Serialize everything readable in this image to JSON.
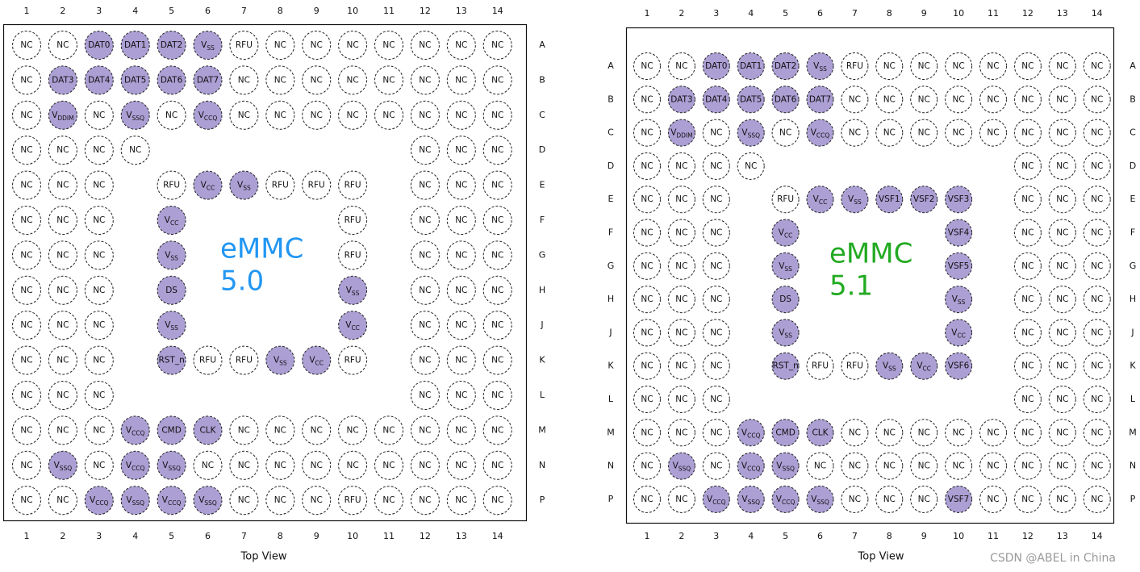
{
  "packages": [
    {
      "label_lines": [
        "eMMC",
        "5.0"
      ],
      "label_color": "#2196f3",
      "caption": "Top View",
      "columns": [
        1,
        2,
        3,
        4,
        5,
        6,
        7,
        8,
        9,
        10,
        11,
        12,
        13,
        14
      ],
      "rows": [
        "A",
        "B",
        "C",
        "D",
        "E",
        "F",
        "G",
        "H",
        "J",
        "K",
        "L",
        "M",
        "N",
        "P"
      ],
      "balls": [
        [
          "NC",
          "NC",
          {
            "t": "DAT0"
          },
          {
            "t": "DAT1"
          },
          {
            "t": "DAT2"
          },
          {
            "t": "V",
            "s": "SS"
          },
          "RFU",
          "NC",
          "NC",
          "NC",
          "NC",
          "NC",
          "NC",
          "NC"
        ],
        [
          "NC",
          {
            "t": "DAT3"
          },
          {
            "t": "DAT4"
          },
          {
            "t": "DAT5"
          },
          {
            "t": "DAT6"
          },
          {
            "t": "DAT7"
          },
          "NC",
          "NC",
          "NC",
          "NC",
          "NC",
          "NC",
          "NC",
          "NC"
        ],
        [
          "NC",
          {
            "t": "V",
            "s": "DDIM"
          },
          "NC",
          {
            "t": "V",
            "s": "SSQ"
          },
          "NC",
          {
            "t": "V",
            "s": "CCQ"
          },
          "NC",
          "NC",
          "NC",
          "NC",
          "NC",
          "NC",
          "NC",
          "NC"
        ],
        [
          "NC",
          "NC",
          "NC",
          "NC",
          null,
          null,
          null,
          null,
          null,
          null,
          null,
          "NC",
          "NC",
          "NC"
        ],
        [
          "NC",
          "NC",
          "NC",
          null,
          "RFU",
          {
            "t": "V",
            "s": "CC"
          },
          {
            "t": "V",
            "s": "SS"
          },
          "RFU",
          "RFU",
          "RFU",
          null,
          "NC",
          "NC",
          "NC"
        ],
        [
          "NC",
          "NC",
          "NC",
          null,
          {
            "t": "V",
            "s": "CC"
          },
          null,
          null,
          null,
          null,
          "RFU",
          null,
          "NC",
          "NC",
          "NC"
        ],
        [
          "NC",
          "NC",
          "NC",
          null,
          {
            "t": "V",
            "s": "SS"
          },
          null,
          null,
          null,
          null,
          "RFU",
          null,
          "NC",
          "NC",
          "NC"
        ],
        [
          "NC",
          "NC",
          "NC",
          null,
          {
            "t": "DS"
          },
          null,
          null,
          null,
          null,
          {
            "t": "V",
            "s": "SS"
          },
          null,
          "NC",
          "NC",
          "NC"
        ],
        [
          "NC",
          "NC",
          "NC",
          null,
          {
            "t": "V",
            "s": "SS"
          },
          null,
          null,
          null,
          null,
          {
            "t": "V",
            "s": "CC"
          },
          null,
          "NC",
          "NC",
          "NC"
        ],
        [
          "NC",
          "NC",
          "NC",
          null,
          {
            "t": "RST_n"
          },
          "RFU",
          "RFU",
          {
            "t": "V",
            "s": "SS"
          },
          {
            "t": "V",
            "s": "CC"
          },
          "RFU",
          null,
          "NC",
          "NC",
          "NC"
        ],
        [
          "NC",
          "NC",
          "NC",
          null,
          null,
          null,
          null,
          null,
          null,
          null,
          null,
          "NC",
          "NC",
          "NC"
        ],
        [
          "NC",
          "NC",
          "NC",
          {
            "t": "V",
            "s": "CCQ"
          },
          {
            "t": "CMD"
          },
          {
            "t": "CLK"
          },
          "NC",
          "NC",
          "NC",
          "NC",
          "NC",
          "NC",
          "NC",
          "NC"
        ],
        [
          "NC",
          {
            "t": "V",
            "s": "SSQ"
          },
          "NC",
          {
            "t": "V",
            "s": "CCQ"
          },
          {
            "t": "V",
            "s": "SSQ"
          },
          "NC",
          "NC",
          "NC",
          "NC",
          "NC",
          "NC",
          "NC",
          "NC",
          "NC"
        ],
        [
          "NC",
          "NC",
          {
            "t": "V",
            "s": "CCQ"
          },
          {
            "t": "V",
            "s": "SSQ"
          },
          {
            "t": "V",
            "s": "CCQ"
          },
          {
            "t": "V",
            "s": "SSQ"
          },
          "NC",
          "NC",
          "NC",
          "RFU",
          "NC",
          "NC",
          "NC",
          "NC"
        ]
      ]
    },
    {
      "label_lines": [
        "eMMC",
        "5.1"
      ],
      "label_color": "#22aa22",
      "caption": "Top View",
      "columns": [
        1,
        2,
        3,
        4,
        5,
        6,
        7,
        8,
        9,
        10,
        11,
        12,
        13,
        14
      ],
      "rows": [
        "A",
        "B",
        "C",
        "D",
        "E",
        "F",
        "G",
        "H",
        "J",
        "K",
        "L",
        "M",
        "N",
        "P"
      ],
      "balls": [
        [
          "NC",
          "NC",
          {
            "t": "DAT0"
          },
          {
            "t": "DAT1"
          },
          {
            "t": "DAT2"
          },
          {
            "t": "V",
            "s": "SS"
          },
          "RFU",
          "NC",
          "NC",
          "NC",
          "NC",
          "NC",
          "NC",
          "NC"
        ],
        [
          "NC",
          {
            "t": "DAT3"
          },
          {
            "t": "DAT4"
          },
          {
            "t": "DAT5"
          },
          {
            "t": "DAT6"
          },
          {
            "t": "DAT7"
          },
          "NC",
          "NC",
          "NC",
          "NC",
          "NC",
          "NC",
          "NC",
          "NC"
        ],
        [
          "NC",
          {
            "t": "V",
            "s": "DDIM"
          },
          "NC",
          {
            "t": "V",
            "s": "SSQ"
          },
          "NC",
          {
            "t": "V",
            "s": "CCQ"
          },
          "NC",
          "NC",
          "NC",
          "NC",
          "NC",
          "NC",
          "NC",
          "NC"
        ],
        [
          "NC",
          "NC",
          "NC",
          "NC",
          null,
          null,
          null,
          null,
          null,
          null,
          null,
          "NC",
          "NC",
          "NC"
        ],
        [
          "NC",
          "NC",
          "NC",
          null,
          "RFU",
          {
            "t": "V",
            "s": "CC"
          },
          {
            "t": "V",
            "s": "SS"
          },
          {
            "t": "VSF1"
          },
          {
            "t": "VSF2"
          },
          {
            "t": "VSF3"
          },
          null,
          "NC",
          "NC",
          "NC"
        ],
        [
          "NC",
          "NC",
          "NC",
          null,
          {
            "t": "V",
            "s": "CC"
          },
          null,
          null,
          null,
          null,
          {
            "t": "VSF4"
          },
          null,
          "NC",
          "NC",
          "NC"
        ],
        [
          "NC",
          "NC",
          "NC",
          null,
          {
            "t": "V",
            "s": "SS"
          },
          null,
          null,
          null,
          null,
          {
            "t": "VSF5"
          },
          null,
          "NC",
          "NC",
          "NC"
        ],
        [
          "NC",
          "NC",
          "NC",
          null,
          {
            "t": "DS"
          },
          null,
          null,
          null,
          null,
          {
            "t": "V",
            "s": "SS"
          },
          null,
          "NC",
          "NC",
          "NC"
        ],
        [
          "NC",
          "NC",
          "NC",
          null,
          {
            "t": "V",
            "s": "SS"
          },
          null,
          null,
          null,
          null,
          {
            "t": "V",
            "s": "CC"
          },
          null,
          "NC",
          "NC",
          "NC"
        ],
        [
          "NC",
          "NC",
          "NC",
          null,
          {
            "t": "RST_n"
          },
          "RFU",
          "RFU",
          {
            "t": "V",
            "s": "SS"
          },
          {
            "t": "V",
            "s": "CC"
          },
          {
            "t": "VSF6"
          },
          null,
          "NC",
          "NC",
          "NC"
        ],
        [
          "NC",
          "NC",
          "NC",
          null,
          null,
          null,
          null,
          null,
          null,
          null,
          null,
          "NC",
          "NC",
          "NC"
        ],
        [
          "NC",
          "NC",
          "NC",
          {
            "t": "V",
            "s": "CCQ"
          },
          {
            "t": "CMD"
          },
          {
            "t": "CLK"
          },
          "NC",
          "NC",
          "NC",
          "NC",
          "NC",
          "NC",
          "NC",
          "NC"
        ],
        [
          "NC",
          {
            "t": "V",
            "s": "SSQ"
          },
          "NC",
          {
            "t": "V",
            "s": "CCQ"
          },
          {
            "t": "V",
            "s": "SSQ"
          },
          "NC",
          "NC",
          "NC",
          "NC",
          "NC",
          "NC",
          "NC",
          "NC",
          "NC"
        ],
        [
          "NC",
          "NC",
          {
            "t": "V",
            "s": "CCQ"
          },
          {
            "t": "V",
            "s": "SSQ"
          },
          {
            "t": "V",
            "s": "CCQ"
          },
          {
            "t": "V",
            "s": "SSQ"
          },
          "NC",
          "NC",
          "NC",
          {
            "t": "VSF7"
          },
          "NC",
          "NC",
          "NC",
          "NC"
        ]
      ]
    }
  ],
  "watermark": "CSDN @ABEL in China"
}
